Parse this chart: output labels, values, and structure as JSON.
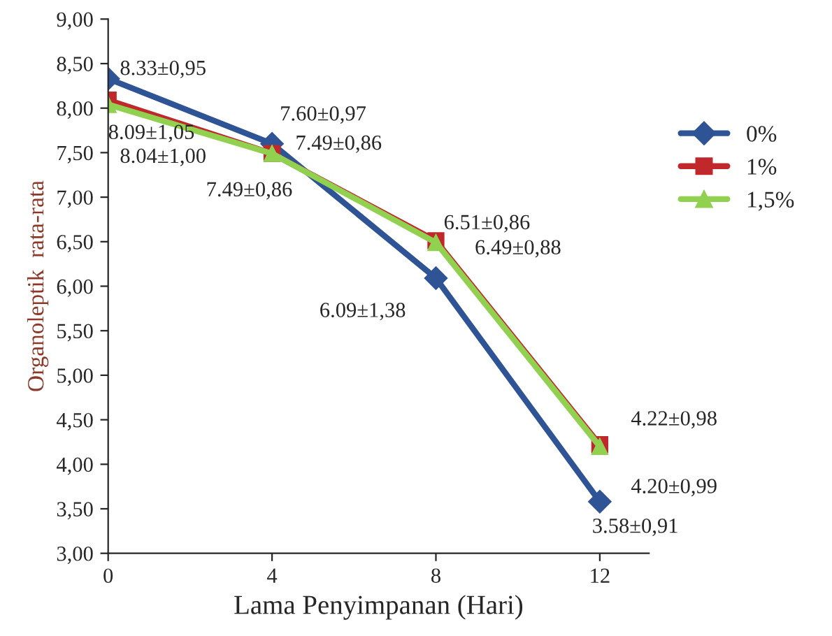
{
  "chart_data": {
    "type": "line",
    "xlabel": "Lama Penyimpanan (Hari)",
    "ylabel": "Organoleptik  rata-rata",
    "x": [
      0,
      4,
      8,
      12
    ],
    "xlim": [
      0,
      13.2
    ],
    "xticks": [
      0,
      4,
      8,
      12
    ],
    "ylim": [
      3,
      9
    ],
    "yticks": [
      {
        "value": 3,
        "label": "3,00"
      },
      {
        "value": 3.5,
        "label": "3,50"
      },
      {
        "value": 4,
        "label": "4,00"
      },
      {
        "value": 4.5,
        "label": "4,50"
      },
      {
        "value": 5,
        "label": "5,00"
      },
      {
        "value": 5.5,
        "label": "5,50"
      },
      {
        "value": 6,
        "label": "6,00"
      },
      {
        "value": 6.5,
        "label": "6,50"
      },
      {
        "value": 7,
        "label": "7,00"
      },
      {
        "value": 7.5,
        "label": "7,50"
      },
      {
        "value": 8,
        "label": "8,00"
      },
      {
        "value": 8.5,
        "label": "8,50"
      },
      {
        "value": 9,
        "label": "9,00"
      }
    ],
    "grid": false,
    "legend": "right",
    "line_style": "solid",
    "series": [
      {
        "name": "0%",
        "color": "#2f5496",
        "marker": "diamond",
        "values": [
          8.33,
          7.6,
          6.09,
          3.58
        ],
        "value_labels": [
          "8.33±0,95",
          "7.60±0,97",
          "6.09±1,38",
          "3.58±0,91"
        ]
      },
      {
        "name": "1%",
        "color": "#c0282b",
        "marker": "square",
        "values": [
          8.09,
          7.49,
          6.51,
          4.22
        ],
        "value_labels": [
          "8.09±1,05",
          "7.49±0,86",
          "6.51±0,86",
          "4.22±0,98"
        ]
      },
      {
        "name": "1,5%",
        "color": "#92d050",
        "marker": "triangle",
        "values": [
          8.04,
          7.49,
          6.49,
          4.2
        ],
        "value_labels": [
          "8.04±1,00",
          "7.49±0,86",
          "6.49±0,88",
          "4.20±0,99"
        ]
      }
    ]
  }
}
